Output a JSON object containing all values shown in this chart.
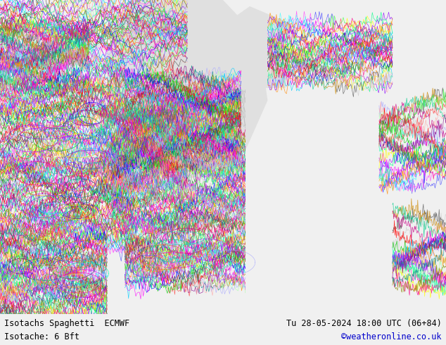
{
  "title_left": "Isotachs Spaghetti  ECMWF",
  "title_right": "Tu 28-05-2024 18:00 UTC (06+84)",
  "subtitle_left": "Isotache: 6 Bft",
  "subtitle_right": "©weatheronline.co.uk",
  "subtitle_right_color": "#0000cc",
  "bg_color": "#f0f0f0",
  "map_bg_land": "#c8e6a0",
  "map_bg_sea": "#e0e0e0",
  "bottom_bar_color": "#d8d8d8",
  "bottom_text_color": "#000000",
  "figsize": [
    6.34,
    4.9
  ],
  "dpi": 100,
  "colors_spaghetti": [
    "#ff0000",
    "#00cc00",
    "#0000ff",
    "#ff00ff",
    "#00ccff",
    "#ff8800",
    "#8800ff",
    "#00ff88",
    "#ffff00",
    "#ff0088",
    "#888800",
    "#008888",
    "#880088",
    "#ff4444",
    "#44ff44",
    "#4444ff",
    "#ff44ff",
    "#44ffff",
    "#ffaa00",
    "#aa00ff",
    "#00ffaa",
    "#ff00aa",
    "#aaffaa",
    "#aaaaff",
    "#ffaaaa",
    "#cccccc",
    "#555555",
    "#cc8800",
    "#00cc88",
    "#cc0088"
  ]
}
